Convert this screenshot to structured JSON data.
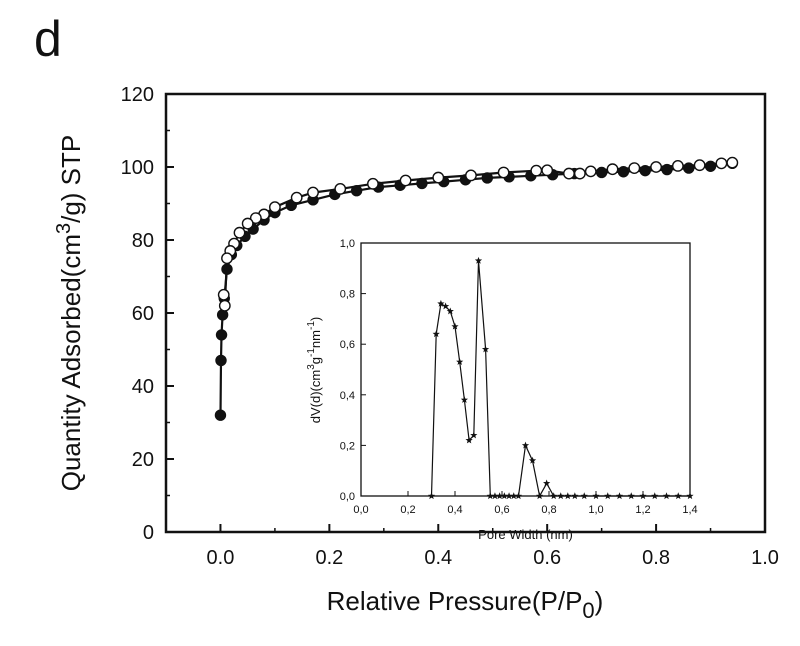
{
  "panel_label": "d",
  "chart_data": [
    {
      "type": "scatter",
      "role": "main",
      "title": "",
      "xlabel": {
        "main": "Relative Pressure(P/P",
        "sub": "0",
        "close": ")"
      },
      "ylabel": {
        "pre": "Quantity Adsorbed(cm",
        "sup": "3",
        "mid": "/g)",
        "post": " STP"
      },
      "xlim": [
        -0.1,
        1.0
      ],
      "ylim": [
        0,
        120
      ],
      "xticks": [
        0.0,
        0.2,
        0.4,
        0.6,
        0.8,
        1.0
      ],
      "xtick_labels": [
        "0.0",
        "0.2",
        "0.4",
        "0.6",
        "0.8",
        "1.0"
      ],
      "yticks": [
        0,
        20,
        40,
        60,
        80,
        100,
        120
      ],
      "ytick_labels": [
        "0",
        "20",
        "40",
        "60",
        "80",
        "100",
        "120"
      ],
      "series": [
        {
          "name": "Adsorption",
          "marker": "filled-circle",
          "x": [
            0.0,
            0.001,
            0.002,
            0.004,
            0.007,
            0.012,
            0.02,
            0.03,
            0.045,
            0.06,
            0.08,
            0.1,
            0.13,
            0.17,
            0.21,
            0.25,
            0.29,
            0.33,
            0.37,
            0.41,
            0.45,
            0.49,
            0.53,
            0.57,
            0.61,
            0.65,
            0.7,
            0.74,
            0.78,
            0.82,
            0.86,
            0.9,
            0.94
          ],
          "y": [
            32,
            47,
            54,
            59.5,
            64,
            72,
            76,
            78.5,
            81,
            83,
            85.5,
            87.5,
            89.5,
            91,
            92.5,
            93.5,
            94.5,
            95,
            95.5,
            96,
            96.5,
            97,
            97.3,
            97.6,
            97.9,
            98.2,
            98.5,
            98.7,
            99,
            99.3,
            99.7,
            100.2,
            101
          ]
        },
        {
          "name": "Desorption",
          "marker": "open-circle",
          "x": [
            0.94,
            0.92,
            0.88,
            0.84,
            0.8,
            0.76,
            0.72,
            0.68,
            0.66,
            0.64,
            0.6,
            0.58,
            0.52,
            0.46,
            0.4,
            0.34,
            0.28,
            0.22,
            0.17,
            0.14,
            0.1,
            0.08,
            0.065,
            0.05,
            0.035,
            0.025,
            0.018,
            0.012,
            0.008,
            0.006
          ],
          "y": [
            101.2,
            101,
            100.5,
            100.3,
            100,
            99.7,
            99.4,
            98.8,
            98.2,
            98.2,
            99.1,
            99,
            98.5,
            97.7,
            97.1,
            96.3,
            95.4,
            94,
            93,
            91.6,
            89,
            87,
            86,
            84.5,
            82,
            79,
            77,
            75,
            62,
            65
          ]
        }
      ]
    },
    {
      "type": "line",
      "role": "inset",
      "title": "",
      "xlabel": "Pore Width (nm)",
      "ylabel": {
        "pre": "dV(d)(cm",
        "sup1": "3",
        "mid": "g",
        "sup2": "-1",
        "mid2": "nm",
        "sup3": "-1",
        "post": ")"
      },
      "xlim": [
        0.0,
        1.4
      ],
      "ylim": [
        0.0,
        1.0
      ],
      "xticks": [
        0.0,
        0.2,
        0.4,
        0.6,
        0.8,
        1.0,
        1.2,
        1.4
      ],
      "xtick_labels": [
        "0,0",
        "0,2",
        "0,4",
        "0,6",
        "0,8",
        "1,0",
        "1,2",
        "1,4"
      ],
      "yticks": [
        0.0,
        0.2,
        0.4,
        0.6,
        0.8,
        1.0
      ],
      "ytick_labels": [
        "0,0",
        "0,2",
        "0,4",
        "0,6",
        "0,8",
        "1,0"
      ],
      "series": [
        {
          "name": "Pore size distribution",
          "marker": "star",
          "x": [
            0.3,
            0.32,
            0.34,
            0.36,
            0.38,
            0.4,
            0.42,
            0.44,
            0.46,
            0.48,
            0.5,
            0.53,
            0.55,
            0.57,
            0.59,
            0.61,
            0.63,
            0.65,
            0.67,
            0.7,
            0.73,
            0.76,
            0.79,
            0.82,
            0.85,
            0.88,
            0.91,
            0.95,
            1.0,
            1.05,
            1.1,
            1.15,
            1.2,
            1.25,
            1.3,
            1.35,
            1.4
          ],
          "y": [
            0.0,
            0.64,
            0.76,
            0.75,
            0.73,
            0.67,
            0.53,
            0.38,
            0.22,
            0.24,
            0.93,
            0.58,
            0.0,
            0.0,
            0.0,
            0.0,
            0.0,
            0.0,
            0.0,
            0.2,
            0.14,
            0.0,
            0.05,
            0.0,
            0.0,
            0.0,
            0.0,
            0.0,
            0.0,
            0.0,
            0.0,
            0.0,
            0.0,
            0.0,
            0.0,
            0.0,
            0.0
          ]
        }
      ]
    }
  ]
}
